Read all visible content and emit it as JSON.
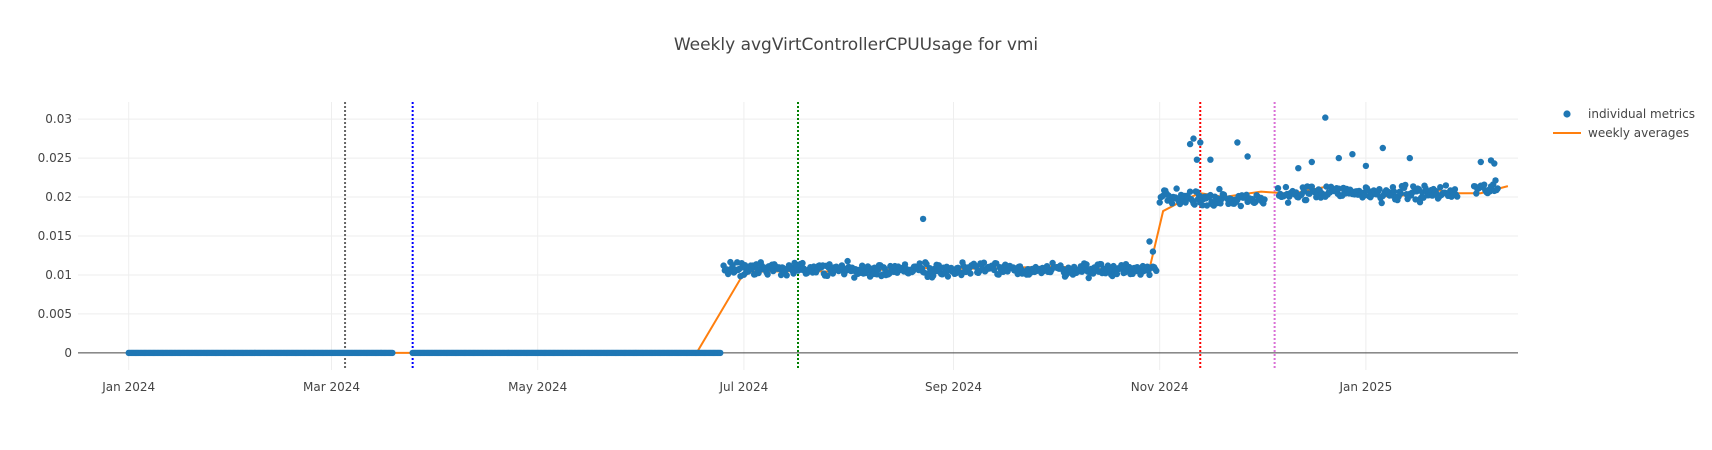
{
  "chart_data": {
    "type": "scatter",
    "title": "Weekly avgVirtControllerCPUUsage for vmi",
    "xlabel": "",
    "ylabel": "",
    "x_range": [
      "2023-12-17",
      "2025-02-15"
    ],
    "ylim": [
      -0.0022,
      0.0322
    ],
    "x_ticks": [
      {
        "date": "2024-01-01",
        "label": "Jan 2024"
      },
      {
        "date": "2024-03-01",
        "label": "Mar 2024"
      },
      {
        "date": "2024-05-01",
        "label": "May 2024"
      },
      {
        "date": "2024-07-01",
        "label": "Jul 2024"
      },
      {
        "date": "2024-09-01",
        "label": "Sep 2024"
      },
      {
        "date": "2024-11-01",
        "label": "Nov 2024"
      },
      {
        "date": "2025-01-01",
        "label": "Jan 2025"
      }
    ],
    "y_ticks": [
      0,
      0.005,
      0.01,
      0.015,
      0.02,
      0.025,
      0.03
    ],
    "y_tick_labels": [
      "0",
      "0.005",
      "0.01",
      "0.015",
      "0.02",
      "0.025",
      "0.03"
    ],
    "grid": true,
    "legend_position": "top-right",
    "vertical_lines": [
      {
        "date": "2024-03-05",
        "color": "#666666"
      },
      {
        "date": "2024-03-25",
        "color": "#0000ff"
      },
      {
        "date": "2024-07-17",
        "color": "#008000"
      },
      {
        "date": "2024-11-13",
        "color": "#ff0000"
      },
      {
        "date": "2024-12-05",
        "color": "#da70d6"
      }
    ],
    "series": [
      {
        "name": "individual metrics",
        "kind": "markers",
        "color": "#1f77b4",
        "segments": [
          {
            "start": "2024-01-01",
            "end": "2024-03-19",
            "level": 0.0,
            "spread": 0.0
          },
          {
            "start": "2024-03-25",
            "end": "2024-06-24",
            "level": 0.0,
            "spread": 0.0
          },
          {
            "start": "2024-06-25",
            "end": "2024-10-31",
            "level": 0.0107,
            "spread": 0.0012
          },
          {
            "start": "2024-11-01",
            "end": "2024-11-20",
            "level": 0.02,
            "spread": 0.0018
          },
          {
            "start": "2024-11-21",
            "end": "2024-12-02",
            "level": 0.0195,
            "spread": 0.0013
          },
          {
            "start": "2024-12-06",
            "end": "2025-01-28",
            "level": 0.0205,
            "spread": 0.0014
          },
          {
            "start": "2025-02-02",
            "end": "2025-02-09",
            "level": 0.021,
            "spread": 0.0013
          }
        ],
        "highlights": [
          {
            "x": "2024-08-23",
            "y": 0.0172
          },
          {
            "x": "2024-11-10",
            "y": 0.0268
          },
          {
            "x": "2024-11-11",
            "y": 0.0275
          },
          {
            "x": "2024-11-13",
            "y": 0.027
          },
          {
            "x": "2024-11-12",
            "y": 0.0248
          },
          {
            "x": "2024-11-16",
            "y": 0.0248
          },
          {
            "x": "2024-11-24",
            "y": 0.027
          },
          {
            "x": "2024-11-27",
            "y": 0.0252
          },
          {
            "x": "2024-12-12",
            "y": 0.0237
          },
          {
            "x": "2024-12-16",
            "y": 0.0245
          },
          {
            "x": "2024-12-20",
            "y": 0.0302
          },
          {
            "x": "2024-12-24",
            "y": 0.025
          },
          {
            "x": "2024-12-28",
            "y": 0.0255
          },
          {
            "x": "2025-01-01",
            "y": 0.024
          },
          {
            "x": "2025-01-06",
            "y": 0.0263
          },
          {
            "x": "2025-01-14",
            "y": 0.025
          },
          {
            "x": "2025-02-04",
            "y": 0.0245
          },
          {
            "x": "2025-02-07",
            "y": 0.0247
          },
          {
            "x": "2025-02-08",
            "y": 0.0243
          },
          {
            "x": "2024-10-29",
            "y": 0.0143
          },
          {
            "x": "2024-10-30",
            "y": 0.013
          }
        ]
      },
      {
        "name": "weekly averages",
        "kind": "line",
        "color": "#ff7f0e",
        "points": [
          {
            "x": "2024-01-01",
            "y": 0.0
          },
          {
            "x": "2024-06-17",
            "y": 0.0
          },
          {
            "x": "2024-06-30",
            "y": 0.0095
          },
          {
            "x": "2024-07-03",
            "y": 0.0104
          },
          {
            "x": "2024-07-17",
            "y": 0.0105
          },
          {
            "x": "2024-08-01",
            "y": 0.0104
          },
          {
            "x": "2024-08-20",
            "y": 0.0109
          },
          {
            "x": "2024-09-10",
            "y": 0.0108
          },
          {
            "x": "2024-10-01",
            "y": 0.0111
          },
          {
            "x": "2024-10-20",
            "y": 0.0106
          },
          {
            "x": "2024-10-29",
            "y": 0.0108
          },
          {
            "x": "2024-11-02",
            "y": 0.0182
          },
          {
            "x": "2024-11-09",
            "y": 0.0198
          },
          {
            "x": "2024-11-13",
            "y": 0.0205
          },
          {
            "x": "2024-11-20",
            "y": 0.02
          },
          {
            "x": "2024-12-01",
            "y": 0.0207
          },
          {
            "x": "2024-12-10",
            "y": 0.0204
          },
          {
            "x": "2024-12-20",
            "y": 0.0213
          },
          {
            "x": "2025-01-01",
            "y": 0.0203
          },
          {
            "x": "2025-01-10",
            "y": 0.02
          },
          {
            "x": "2025-01-20",
            "y": 0.021
          },
          {
            "x": "2025-01-28",
            "y": 0.0205
          },
          {
            "x": "2025-02-04",
            "y": 0.0205
          },
          {
            "x": "2025-02-12",
            "y": 0.0214
          }
        ]
      }
    ]
  }
}
